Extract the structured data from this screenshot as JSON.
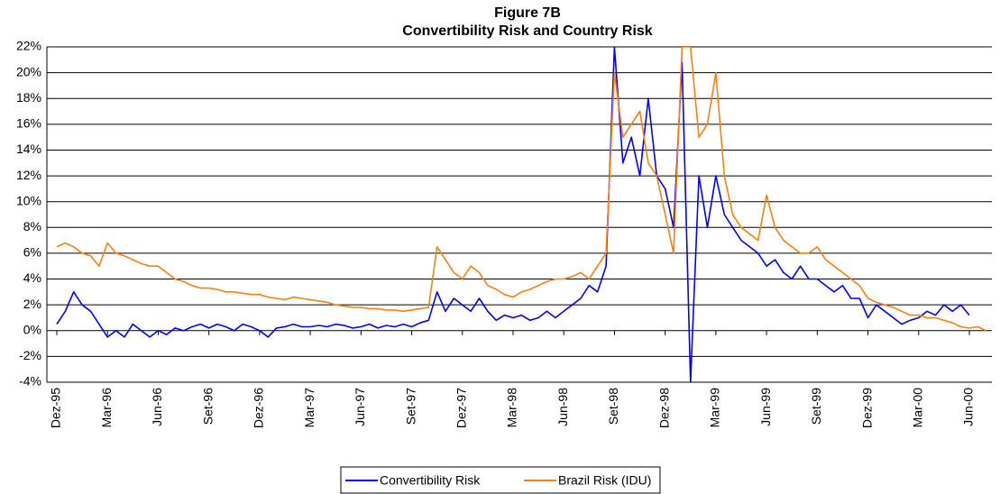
{
  "chart_data": {
    "type": "line",
    "title": "Figure 7B",
    "subtitle": "Convertibility Risk and Country Risk",
    "categories": [
      "Dez-95",
      null,
      null,
      null,
      null,
      null,
      "Mar-96",
      null,
      null,
      null,
      null,
      null,
      "Jun-96",
      null,
      null,
      null,
      null,
      null,
      "Set-96",
      null,
      null,
      null,
      null,
      null,
      "Dez-96",
      null,
      null,
      null,
      null,
      null,
      "Mar-97",
      null,
      null,
      null,
      null,
      null,
      "Jun-97",
      null,
      null,
      null,
      null,
      null,
      "Set-97",
      null,
      null,
      null,
      null,
      null,
      "Dez-97",
      null,
      null,
      null,
      null,
      null,
      "Mar-98",
      null,
      null,
      null,
      null,
      null,
      "Jun-98",
      null,
      null,
      null,
      null,
      null,
      "Set-98",
      null,
      null,
      null,
      null,
      null,
      "Dez-98",
      null,
      null,
      null,
      null,
      null,
      "Mar-99",
      null,
      null,
      null,
      null,
      null,
      "Jun-99",
      null,
      null,
      null,
      null,
      null,
      "Set-99",
      null,
      null,
      null,
      null,
      null,
      "Dez-99",
      null,
      null,
      null,
      null,
      null,
      "Mar-00",
      null,
      null,
      null,
      null,
      null,
      "Jun-00",
      null,
      null
    ],
    "series": [
      {
        "name": "Convertibility Risk",
        "color": "#0000ff",
        "values": [
          0.5,
          1.5,
          3.0,
          2.0,
          1.5,
          0.5,
          -0.5,
          0.0,
          -0.5,
          0.5,
          0.0,
          -0.5,
          0.0,
          -0.3,
          0.2,
          0.0,
          0.3,
          0.5,
          0.2,
          0.5,
          0.3,
          0.0,
          0.5,
          0.3,
          0.0,
          -0.5,
          0.2,
          0.3,
          0.5,
          0.3,
          0.3,
          0.4,
          0.3,
          0.5,
          0.4,
          0.2,
          0.3,
          0.5,
          0.2,
          0.4,
          0.3,
          0.5,
          0.3,
          0.6,
          0.8,
          3.0,
          1.5,
          2.5,
          2.0,
          1.5,
          2.5,
          1.5,
          0.8,
          1.2,
          1.0,
          1.2,
          0.8,
          1.0,
          1.5,
          1.0,
          1.5,
          2.0,
          2.5,
          3.5,
          3.0,
          5.0,
          22.0,
          13.0,
          15.0,
          12.0,
          18.0,
          12.0,
          11.0,
          8.0,
          20.8,
          -4.0,
          12.0,
          8.0,
          12.0,
          9.0,
          8.0,
          7.0,
          6.5,
          6.0,
          5.0,
          5.5,
          4.5,
          4.0,
          5.0,
          4.0,
          4.0,
          3.5,
          3.0,
          3.5,
          2.5,
          2.5,
          1.0,
          2.0,
          1.5,
          1.0,
          0.5,
          0.8,
          1.0,
          1.5,
          1.2,
          2.0,
          1.5,
          2.0,
          1.2,
          null,
          null
        ]
      },
      {
        "name": "Brazil Risk (IDU)",
        "color": "#ff7f0e",
        "values": [
          6.5,
          6.8,
          6.5,
          6.0,
          5.8,
          5.0,
          6.8,
          6.0,
          5.8,
          5.5,
          5.2,
          5.0,
          5.0,
          4.5,
          4.0,
          3.8,
          3.5,
          3.3,
          3.3,
          3.2,
          3.0,
          3.0,
          2.9,
          2.8,
          2.8,
          2.6,
          2.5,
          2.4,
          2.6,
          2.5,
          2.4,
          2.3,
          2.2,
          2.0,
          1.9,
          1.8,
          1.8,
          1.7,
          1.7,
          1.6,
          1.6,
          1.5,
          1.6,
          1.7,
          1.8,
          6.5,
          5.5,
          4.5,
          4.0,
          5.0,
          4.5,
          3.5,
          3.2,
          2.8,
          2.6,
          3.0,
          3.2,
          3.5,
          3.8,
          4.0,
          4.0,
          4.2,
          4.5,
          4.0,
          5.0,
          6.0,
          20.0,
          15.0,
          16.0,
          17.0,
          13.0,
          12.0,
          9.0,
          6.0,
          22.0,
          22.0,
          15.0,
          16.0,
          20.0,
          12.0,
          9.0,
          8.0,
          7.5,
          7.0,
          10.5,
          8.0,
          7.0,
          6.5,
          6.0,
          6.0,
          6.5,
          5.5,
          5.0,
          4.5,
          4.0,
          3.5,
          2.5,
          2.2,
          2.0,
          1.8,
          1.5,
          1.2,
          1.2,
          1.0,
          1.0,
          0.8,
          0.6,
          0.3,
          0.2,
          0.3,
          0.0
        ]
      }
    ],
    "ylim": [
      -4,
      22
    ],
    "yticks": [
      {
        "value": -4,
        "label": "-4%"
      },
      {
        "value": -2,
        "label": "-2%"
      },
      {
        "value": 0,
        "label": "0%"
      },
      {
        "value": 2,
        "label": "2%"
      },
      {
        "value": 4,
        "label": "4%"
      },
      {
        "value": 6,
        "label": "6%"
      },
      {
        "value": 8,
        "label": "8%"
      },
      {
        "value": 10,
        "label": "10%"
      },
      {
        "value": 12,
        "label": "12%"
      },
      {
        "value": 14,
        "label": "14%"
      },
      {
        "value": 16,
        "label": "16%"
      },
      {
        "value": 18,
        "label": "18%"
      },
      {
        "value": 20,
        "label": "20%"
      },
      {
        "value": 22,
        "label": "22%"
      }
    ],
    "grid": true,
    "legend": "bottom"
  }
}
